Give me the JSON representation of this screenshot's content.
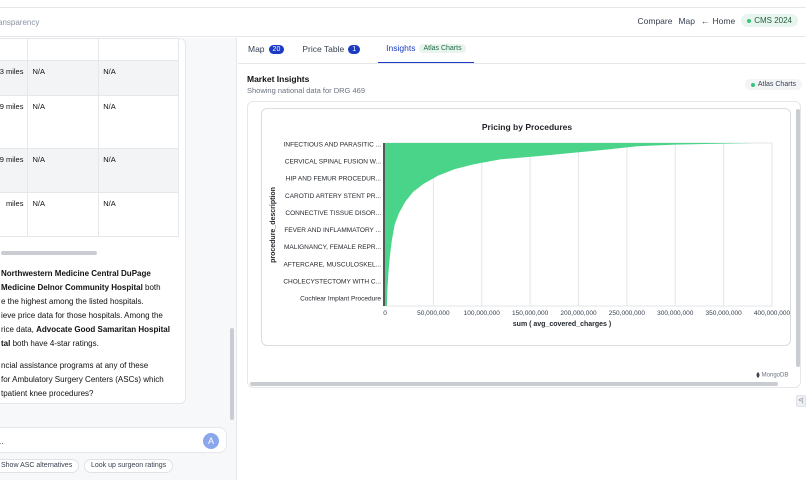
{
  "header": {
    "brand_fragment": "ansparency",
    "nav": {
      "compare": "Compare",
      "map": "Map",
      "home": "Home",
      "home_arrow": "←"
    },
    "dataset_badge": "CMS 2024"
  },
  "results_table": {
    "rows": [
      {
        "distance": "3 miles",
        "col2": "N/A",
        "col3": "N/A"
      },
      {
        "distance": "9 miles",
        "col2": "N/A",
        "col3": "N/A"
      },
      {
        "distance": "9 miles",
        "col2": "N/A",
        "col3": "N/A"
      },
      {
        "distance": "miles",
        "col2": "N/A",
        "col3": "N/A"
      }
    ]
  },
  "assistant_message": {
    "p1": {
      "l1_bold": "Northwestern Medicine Central DuPage",
      "l2_bold": "Medicine Delnor Community Hospital",
      "l2_rest": " both",
      "l3": "e the highest among the listed hospitals.",
      "l4": "ieve price data for those hospitals. Among the",
      "l5_pre": "rice data, ",
      "l5_bold": "Advocate Good Samaritan Hospital",
      "l6_bold": "tal",
      "l6_rest": " both have 4-star ratings."
    },
    "p2": {
      "l1": "ncial assistance programs at any of these",
      "l2": "for Ambulatory Surgery Centers (ASCs) which",
      "l3": "tpatient knee procedures?"
    }
  },
  "chat_input": {
    "value": "..",
    "send_icon": "A"
  },
  "suggestions": [
    "Show ASC alternatives",
    "Look up surgeon ratings"
  ],
  "tabs": [
    {
      "label": "Map",
      "count": "20"
    },
    {
      "label": "Price Table",
      "count": "1"
    },
    {
      "label": "Insights",
      "badge": "Atlas Charts"
    }
  ],
  "insights": {
    "title": "Market Insights",
    "subtitle": "Showing national data for DRG 469",
    "badge": "Atlas Charts",
    "footer_brand": "MongoDB"
  },
  "edge_button_label": "<|",
  "chart_data": {
    "type": "area",
    "orientation": "horizontal",
    "title": "Pricing by Procedures",
    "xlabel": "sum ( avg_covered_charges )",
    "ylabel": "procedure_description",
    "xlim": [
      0,
      400000000
    ],
    "x_ticks": [
      0,
      50000000,
      100000000,
      150000000,
      200000000,
      250000000,
      300000000,
      350000000,
      400000000
    ],
    "x_tick_labels": [
      "0",
      "50,000,000",
      "100,000,000",
      "150,000,000",
      "200,000,000",
      "250,000,000",
      "300,000,000",
      "350,000,000",
      "400,000,000"
    ],
    "grid": true,
    "fill_color": "#4ad48a",
    "categories": [
      "INFECTIOUS AND PARASITIC ...",
      "CERVICAL SPINAL FUSION W...",
      "HIP AND FEMUR PROCEDUR...",
      "CAROTID ARTERY STENT PR...",
      "CONNECTIVE TISSUE DISOR...",
      "FEVER AND INFLAMMATORY ...",
      "MALIGNANCY, FEMALE REPR...",
      "AFTERCARE, MUSCULOSKEL...",
      "CHOLECYSTECTOMY WITH C...",
      "Cochlear Implant Procedure"
    ],
    "profile_rank_fraction": [
      0,
      0.01,
      0.02,
      0.04,
      0.06,
      0.08,
      0.1,
      0.13,
      0.16,
      0.2,
      0.25,
      0.3,
      0.36,
      0.43,
      0.5,
      0.6,
      0.7,
      0.8,
      0.9,
      1.0
    ],
    "profile_values": [
      382000000,
      300000000,
      260000000,
      230000000,
      195000000,
      160000000,
      120000000,
      92000000,
      72000000,
      55000000,
      40000000,
      29000000,
      21000000,
      14500000,
      10000000,
      7000000,
      5000000,
      3500000,
      2500000,
      2000000
    ]
  }
}
